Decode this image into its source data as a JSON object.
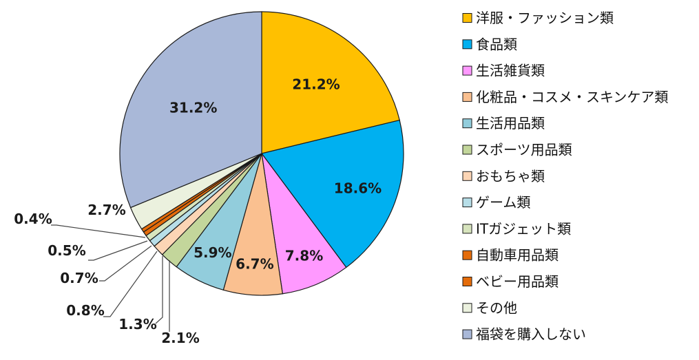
{
  "chart_data": {
    "type": "pie",
    "title": "",
    "start": "top, clockwise",
    "slices": [
      {
        "label": "洋服・ファッション類",
        "value": 21.2,
        "value_text": "21.2%",
        "color": "#FFC000"
      },
      {
        "label": "食品類",
        "value": 18.6,
        "value_text": "18.6%",
        "color": "#00B0F0"
      },
      {
        "label": "生活雑貨類",
        "value": 7.8,
        "value_text": "7.8%",
        "color": "#FF99FF"
      },
      {
        "label": "化粧品・コスメ・スキンケア類",
        "value": 6.7,
        "value_text": "6.7%",
        "color": "#FAC090"
      },
      {
        "label": "生活用品類",
        "value": 5.9,
        "value_text": "5.9%",
        "color": "#92CDDC"
      },
      {
        "label": "スポーツ用品類",
        "value": 2.1,
        "value_text": "2.1%",
        "color": "#C3D69B"
      },
      {
        "label": "おもちゃ類",
        "value": 1.3,
        "value_text": "1.3%",
        "color": "#FCD5B5"
      },
      {
        "label": "ゲーム類",
        "value": 0.8,
        "value_text": "0.8%",
        "color": "#B7DEE8"
      },
      {
        "label": "ITガジェット類",
        "value": 0.7,
        "value_text": "0.7%",
        "color": "#D7E4BD"
      },
      {
        "label": "自動車用品類",
        "value": 0.5,
        "value_text": "0.5%",
        "color": "#E46C0A"
      },
      {
        "label": "ベビー用品類",
        "value": 0.4,
        "value_text": "0.4%",
        "color": "#E46C0A"
      },
      {
        "label": "その他",
        "value": 2.7,
        "value_text": "2.7%",
        "color": "#EBF1DE"
      },
      {
        "label": "福袋を購入しない",
        "value": 31.2,
        "value_text": "31.2%",
        "color": "#A9B8D8"
      }
    ],
    "legend_position": "right"
  }
}
